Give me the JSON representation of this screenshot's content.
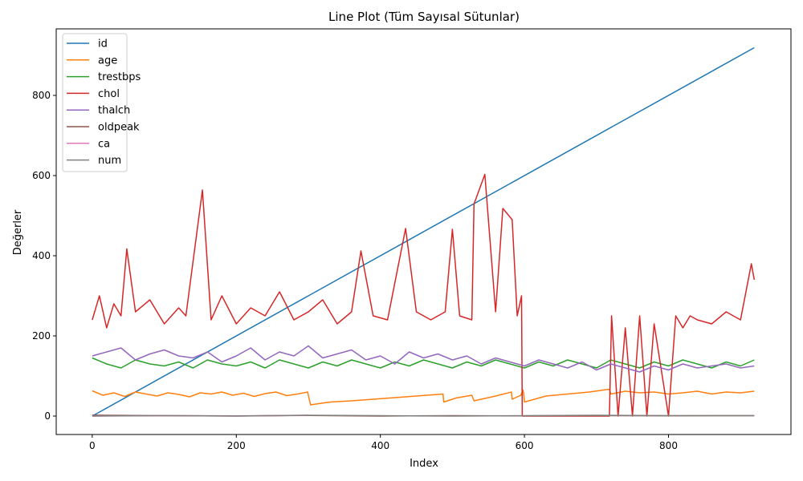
{
  "chart_data": {
    "type": "line",
    "title": "Line Plot (Tüm Sayısal Sütunlar)",
    "xlabel": "Index",
    "ylabel": "Değerler",
    "xlim": [
      -50,
      970
    ],
    "ylim": [
      -46,
      966
    ],
    "xticks": [
      0,
      200,
      400,
      600,
      800
    ],
    "yticks": [
      0,
      200,
      400,
      600,
      800
    ],
    "grid": false,
    "legend_position": "top-left",
    "series": [
      {
        "name": "id",
        "color": "#1f77b4",
        "x": [
          0,
          919
        ],
        "values": [
          0,
          919
        ]
      },
      {
        "name": "age",
        "color": "#ff7f0e",
        "x": [
          0,
          15,
          30,
          45,
          60,
          75,
          90,
          105,
          120,
          135,
          150,
          165,
          180,
          195,
          210,
          225,
          240,
          255,
          270,
          285,
          299,
          303,
          330,
          360,
          390,
          420,
          450,
          487,
          488,
          505,
          527,
          530,
          560,
          582,
          583,
          595,
          598,
          599,
          600,
          630,
          660,
          690,
          718,
          720,
          740,
          760,
          780,
          800,
          820,
          840,
          860,
          880,
          900,
          919
        ],
        "values": [
          63,
          52,
          58,
          49,
          60,
          55,
          50,
          58,
          54,
          48,
          58,
          55,
          60,
          52,
          57,
          49,
          56,
          60,
          51,
          55,
          60,
          28,
          35,
          38,
          42,
          46,
          50,
          55,
          35,
          45,
          52,
          38,
          50,
          60,
          42,
          52,
          65,
          55,
          35,
          50,
          55,
          60,
          67,
          55,
          62,
          58,
          60,
          55,
          58,
          62,
          55,
          60,
          58,
          62
        ]
      },
      {
        "name": "trestbps",
        "color": "#2ca02c",
        "x": [
          0,
          20,
          40,
          60,
          80,
          100,
          120,
          140,
          160,
          180,
          200,
          220,
          240,
          260,
          280,
          300,
          320,
          340,
          360,
          380,
          400,
          420,
          440,
          460,
          480,
          500,
          520,
          540,
          560,
          580,
          600,
          620,
          640,
          660,
          680,
          700,
          720,
          740,
          760,
          780,
          800,
          820,
          840,
          860,
          880,
          900,
          919
        ],
        "values": [
          145,
          130,
          120,
          140,
          130,
          125,
          135,
          120,
          140,
          130,
          125,
          135,
          120,
          140,
          130,
          120,
          135,
          125,
          140,
          130,
          120,
          135,
          125,
          140,
          130,
          120,
          135,
          125,
          140,
          130,
          120,
          135,
          125,
          140,
          130,
          120,
          140,
          130,
          120,
          135,
          125,
          140,
          130,
          120,
          135,
          125,
          140
        ]
      },
      {
        "name": "chol",
        "color": "#d62728",
        "x": [
          0,
          10,
          20,
          30,
          40,
          48,
          60,
          80,
          100,
          120,
          130,
          153,
          165,
          180,
          200,
          220,
          240,
          260,
          280,
          300,
          320,
          340,
          360,
          373,
          390,
          410,
          435,
          450,
          470,
          490,
          500,
          510,
          527,
          530,
          545,
          560,
          570,
          583,
          590,
          596,
          597,
          600,
          620,
          650,
          680,
          700,
          718,
          721,
          730,
          740,
          750,
          760,
          770,
          780,
          800,
          810,
          820,
          830,
          840,
          860,
          880,
          900,
          915,
          919
        ],
        "values": [
          240,
          300,
          220,
          280,
          250,
          417,
          260,
          290,
          230,
          270,
          250,
          564,
          240,
          300,
          230,
          270,
          250,
          310,
          240,
          260,
          290,
          230,
          260,
          412,
          250,
          240,
          468,
          260,
          240,
          260,
          466,
          250,
          240,
          529,
          603,
          260,
          518,
          490,
          250,
          300,
          0,
          0,
          0,
          0,
          0,
          0,
          0,
          250,
          0,
          220,
          0,
          250,
          0,
          230,
          0,
          250,
          220,
          250,
          240,
          230,
          260,
          240,
          380,
          340
        ]
      },
      {
        "name": "thalch",
        "color": "#9467bd",
        "x": [
          0,
          20,
          40,
          60,
          80,
          100,
          120,
          140,
          160,
          180,
          200,
          220,
          240,
          260,
          280,
          300,
          320,
          340,
          360,
          380,
          400,
          420,
          440,
          460,
          480,
          500,
          520,
          540,
          560,
          580,
          600,
          620,
          640,
          660,
          680,
          700,
          720,
          740,
          760,
          780,
          800,
          820,
          840,
          860,
          880,
          900,
          919
        ],
        "values": [
          150,
          160,
          170,
          140,
          155,
          165,
          150,
          145,
          160,
          135,
          150,
          170,
          140,
          160,
          150,
          175,
          145,
          155,
          165,
          140,
          150,
          130,
          160,
          145,
          155,
          140,
          150,
          130,
          145,
          135,
          125,
          140,
          130,
          120,
          135,
          115,
          130,
          120,
          110,
          125,
          115,
          130,
          120,
          125,
          130,
          120,
          125
        ]
      },
      {
        "name": "oldpeak",
        "color": "#8c564b",
        "x": [
          0,
          100,
          200,
          300,
          400,
          500,
          600,
          700,
          800,
          919
        ],
        "values": [
          2.3,
          1.0,
          0.5,
          1.5,
          0.0,
          1.0,
          0.5,
          1.2,
          0.8,
          1.0
        ]
      },
      {
        "name": "ca",
        "color": "#e377c2",
        "x": [
          0,
          100,
          200,
          300
        ],
        "values": [
          0,
          1,
          0,
          2
        ]
      },
      {
        "name": "num",
        "color": "#7f7f7f",
        "x": [
          0,
          100,
          200,
          300,
          400,
          500,
          600,
          700,
          800,
          919
        ],
        "values": [
          0,
          1,
          0,
          2,
          1,
          0,
          1,
          2,
          1,
          1
        ]
      }
    ]
  }
}
